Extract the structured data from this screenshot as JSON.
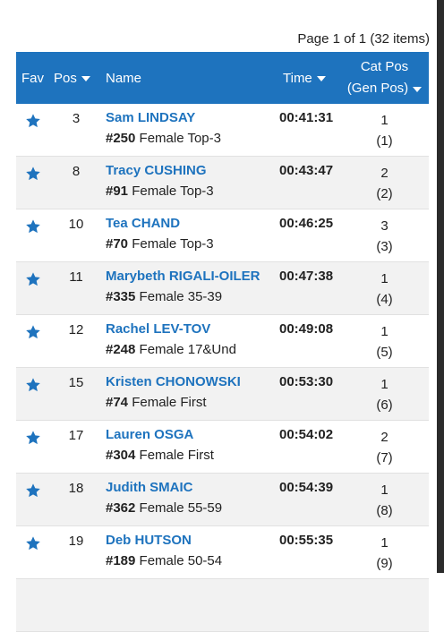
{
  "pager": {
    "text": "Page 1 of 1 (32 items)"
  },
  "header": {
    "fav": "Fav",
    "pos": "Pos",
    "name": "Name",
    "time": "Time",
    "cat_line1": "Cat Pos",
    "cat_line2": "(Gen Pos)"
  },
  "colors": {
    "header_bg": "#1e73be",
    "link": "#1e73be",
    "star": "#1e73be",
    "alt_row": "#f2f2f2"
  },
  "rows": [
    {
      "pos": "3",
      "name": "Sam LINDSAY",
      "bib": "#250",
      "category": "Female Top-3",
      "time": "00:41:31",
      "cat_pos": "1",
      "gen_pos": "(1)"
    },
    {
      "pos": "8",
      "name": "Tracy CUSHING",
      "bib": "#91",
      "category": "Female Top-3",
      "time": "00:43:47",
      "cat_pos": "2",
      "gen_pos": "(2)"
    },
    {
      "pos": "10",
      "name": "Tea CHAND",
      "bib": "#70",
      "category": "Female Top-3",
      "time": "00:46:25",
      "cat_pos": "3",
      "gen_pos": "(3)"
    },
    {
      "pos": "11",
      "name": "Marybeth RIGALI-OILER",
      "bib": "#335",
      "category": "Female 35-39",
      "time": "00:47:38",
      "cat_pos": "1",
      "gen_pos": "(4)"
    },
    {
      "pos": "12",
      "name": "Rachel LEV-TOV",
      "bib": "#248",
      "category": "Female 17&Und",
      "time": "00:49:08",
      "cat_pos": "1",
      "gen_pos": "(5)"
    },
    {
      "pos": "15",
      "name": "Kristen CHONOWSKI",
      "bib": "#74",
      "category": "Female First",
      "time": "00:53:30",
      "cat_pos": "1",
      "gen_pos": "(6)"
    },
    {
      "pos": "17",
      "name": "Lauren OSGA",
      "bib": "#304",
      "category": "Female First",
      "time": "00:54:02",
      "cat_pos": "2",
      "gen_pos": "(7)"
    },
    {
      "pos": "18",
      "name": "Judith SMAIC",
      "bib": "#362",
      "category": "Female 55-59",
      "time": "00:54:39",
      "cat_pos": "1",
      "gen_pos": "(8)"
    },
    {
      "pos": "19",
      "name": "Deb HUTSON",
      "bib": "#189",
      "category": "Female 50-54",
      "time": "00:55:35",
      "cat_pos": "1",
      "gen_pos": "(9)"
    },
    {
      "pos": "",
      "name": "",
      "bib": "",
      "category": "",
      "time": "",
      "cat_pos": "",
      "gen_pos": ""
    }
  ]
}
